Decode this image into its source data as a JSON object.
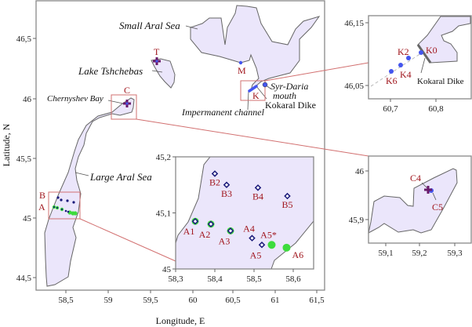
{
  "main_map": {
    "xlabel": "Longitude, E",
    "ylabel": "Latitude, N",
    "x_ticks": [
      "58,5",
      "59",
      "59,5",
      "60",
      "60,5",
      "61",
      "61,5"
    ],
    "y_ticks": [
      "46,5",
      "46",
      "45,5",
      "45",
      "44,5"
    ],
    "labels": {
      "small_aral": "Small Aral Sea",
      "tshchebas": "Lake Tshchebas",
      "chernyshev": "Chernyshev Bay",
      "large_aral": "Large Aral Sea",
      "impermanent": "Impermanent channel",
      "syr_daria_1": "Syr-Daria",
      "syr_daria_2": "mouth",
      "kokaral": "Kokaral Dike"
    },
    "stations": {
      "T": "T",
      "M": "M",
      "K": "K",
      "C": "C",
      "B": "B",
      "A": "A"
    }
  },
  "inset_ab": {
    "x_ticks": [
      "58,3",
      "58,4",
      "58,5",
      "58,6"
    ],
    "y_ticks": [
      "45,2",
      "45,1",
      "45"
    ],
    "points": [
      {
        "label": "B2",
        "lon": 58.4,
        "lat": 45.17,
        "type": "diamond"
      },
      {
        "label": "B3",
        "lon": 58.43,
        "lat": 45.15,
        "type": "diamond"
      },
      {
        "label": "B4",
        "lon": 58.51,
        "lat": 45.145,
        "type": "diamond"
      },
      {
        "label": "B5",
        "lon": 58.585,
        "lat": 45.13,
        "type": "diamond"
      },
      {
        "label": "A1",
        "lon": 58.35,
        "lat": 45.085,
        "type": "both"
      },
      {
        "label": "A2",
        "lon": 58.39,
        "lat": 45.08,
        "type": "both"
      },
      {
        "label": "A3",
        "lon": 58.44,
        "lat": 45.068,
        "type": "both"
      },
      {
        "label": "A4",
        "lon": 58.495,
        "lat": 45.055,
        "type": "diamond"
      },
      {
        "label": "A5",
        "lon": 58.52,
        "lat": 45.043,
        "type": "diamond"
      },
      {
        "label": "A5*",
        "lon": 58.545,
        "lat": 45.043,
        "type": "green"
      },
      {
        "label": "A6",
        "lon": 58.583,
        "lat": 45.038,
        "type": "green"
      }
    ]
  },
  "inset_k": {
    "x_ticks": [
      "60,7",
      "60,8"
    ],
    "y_ticks": [
      "46,15",
      "46,05"
    ],
    "points": [
      "K0",
      "K2",
      "K4",
      "K6"
    ],
    "dike_label": "Kokaral Dike"
  },
  "inset_c": {
    "x_ticks": [
      "59,1",
      "59,2",
      "59,3"
    ],
    "y_ticks": [
      "46",
      "45,9"
    ],
    "points": [
      "C4",
      "C5"
    ]
  },
  "colors": {
    "water": "#ebe6fb",
    "station_label": "#a0151c",
    "diamond": "#1a1a7a",
    "green": "#3ddc3d",
    "blue": "#4455ee",
    "cross": "#6a1a6a"
  }
}
